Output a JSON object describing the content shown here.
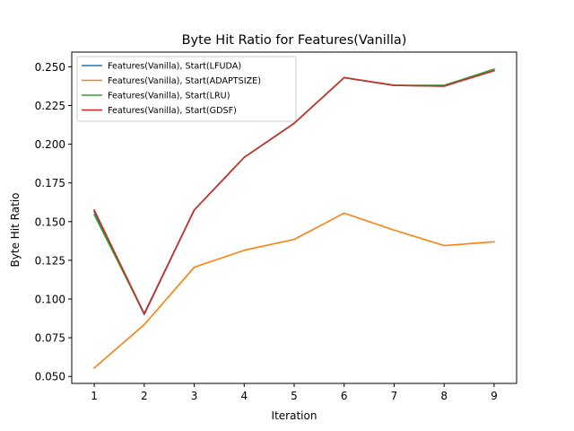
{
  "chart_data": {
    "type": "line",
    "title": "Byte Hit Ratio for Features(Vanilla)",
    "xlabel": "Iteration",
    "ylabel": "Byte Hit Ratio",
    "x": [
      1,
      2,
      3,
      4,
      5,
      6,
      7,
      8,
      9
    ],
    "xlim": [
      0.55,
      9.45
    ],
    "ylim": [
      0.0455,
      0.2595
    ],
    "xticks": [
      1,
      2,
      3,
      4,
      5,
      6,
      7,
      8,
      9
    ],
    "yticks": [
      0.05,
      0.075,
      0.1,
      0.125,
      0.15,
      0.175,
      0.2,
      0.225,
      0.25
    ],
    "ytick_labels": [
      "0.050",
      "0.075",
      "0.100",
      "0.125",
      "0.150",
      "0.175",
      "0.200",
      "0.225",
      "0.250"
    ],
    "grid": false,
    "legend_position": "upper-left",
    "series": [
      {
        "name": "Features(Vanilla), Start(LFUDA)",
        "color": "#1f77b4",
        "values": [
          0.1565,
          0.09,
          0.1575,
          0.1915,
          0.2135,
          0.243,
          0.238,
          0.2375,
          0.2475
        ]
      },
      {
        "name": "Features(Vanilla), Start(ADAPTSIZE)",
        "color": "#ff7f0e",
        "values": [
          0.0555,
          0.0835,
          0.1205,
          0.1315,
          0.1385,
          0.1555,
          0.1445,
          0.1345,
          0.137
        ]
      },
      {
        "name": "Features(Vanilla), Start(LRU)",
        "color": "#2ca02c",
        "values": [
          0.1545,
          0.0905,
          0.1575,
          0.1915,
          0.2135,
          0.243,
          0.238,
          0.238,
          0.2485
        ]
      },
      {
        "name": "Features(Vanilla), Start(GDSF)",
        "color": "#d62728",
        "values": [
          0.1575,
          0.0905,
          0.1575,
          0.1915,
          0.2135,
          0.243,
          0.238,
          0.2375,
          0.2475
        ]
      }
    ]
  }
}
